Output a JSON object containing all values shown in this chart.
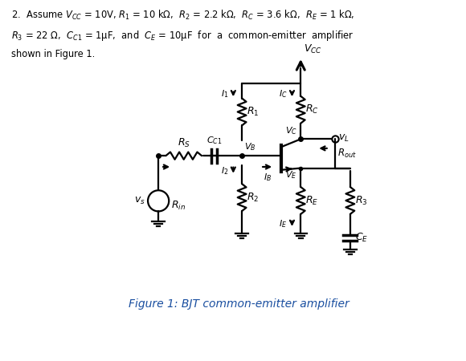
{
  "title_line1": "2.  Assume $V_{CC}$ = 10V, $R_1$ = 10 kΩ,  $R_2$ = 2.2 kΩ,  $R_C$ = 3.6 kΩ,  $R_E$ = 1 kΩ,",
  "title_line2": "$R_3$ = 22 Ω,  $C_{C1}$ = 1μF,  and  $C_E$ = 10μF  for  a  common-emitter  amplifier",
  "title_line3": "shown in Figure 1.",
  "figure_caption": "Figure 1: BJT common-emitter amplifier",
  "bg_color": "#ffffff",
  "line_color": "#000000",
  "caption_color": "#1a4fa0"
}
